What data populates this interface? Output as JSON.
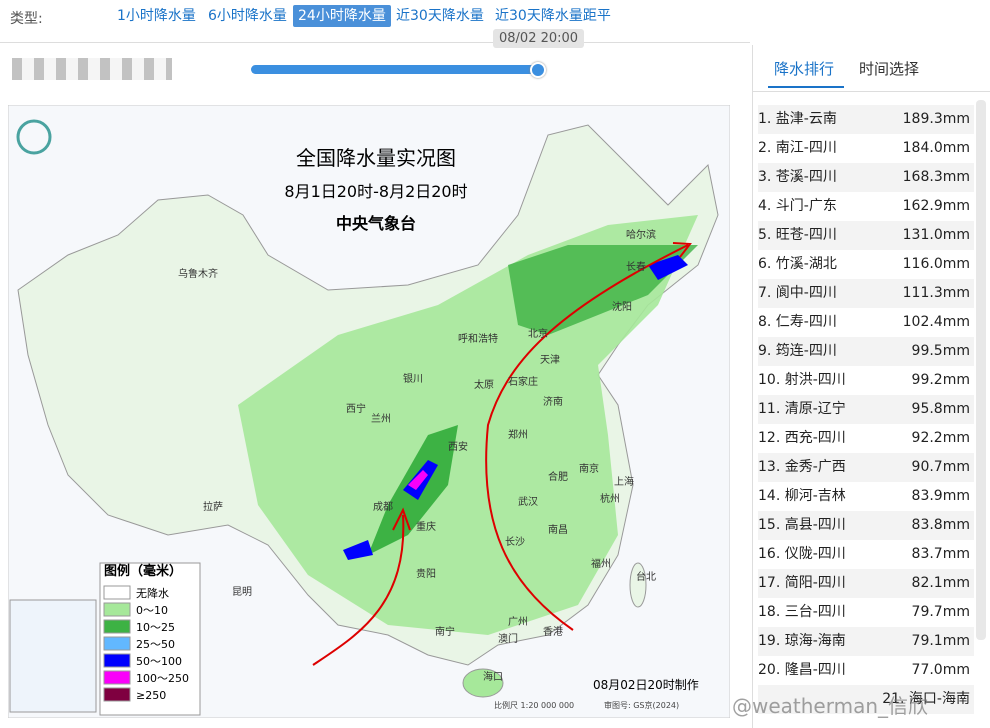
{
  "toolbar": {
    "label": "类型:",
    "tabs": [
      "1小时降水量",
      "6小时降水量",
      "24小时降水量",
      "近30天降水量",
      "近30天降水量距平"
    ],
    "active_tab": 2
  },
  "slider": {
    "time": "08/02 20:00"
  },
  "side_panel": {
    "tabs": [
      "降水排行",
      "时间选择"
    ],
    "active_tab": 0,
    "rows": [
      [
        "1. 盐津-云南",
        "189.3mm"
      ],
      [
        "2. 南江-四川",
        "184.0mm"
      ],
      [
        "3. 苍溪-四川",
        "168.3mm"
      ],
      [
        "4. 斗门-广东",
        "162.9mm"
      ],
      [
        "5. 旺苍-四川",
        "131.0mm"
      ],
      [
        "6. 竹溪-湖北",
        "116.0mm"
      ],
      [
        "7. 阆中-四川",
        "111.3mm"
      ],
      [
        "8. 仁寿-四川",
        "102.4mm"
      ],
      [
        "9. 筠连-四川",
        "99.5mm"
      ],
      [
        "10. 射洪-四川",
        "99.2mm"
      ],
      [
        "11. 清原-辽宁",
        "95.8mm"
      ],
      [
        "12. 西充-四川",
        "92.2mm"
      ],
      [
        "13. 金秀-广西",
        "90.7mm"
      ],
      [
        "14. 柳河-吉林",
        "83.9mm"
      ],
      [
        "15. 高县-四川",
        "83.8mm"
      ],
      [
        "16. 仪陇-四川",
        "83.7mm"
      ],
      [
        "17. 简阳-四川",
        "82.1mm"
      ],
      [
        "18. 三台-四川",
        "79.7mm"
      ],
      [
        "19. 琼海-海南",
        "79.1mm"
      ],
      [
        "20. 隆昌-四川",
        "77.0mm"
      ],
      [
        "21. 海口-海南"
      ]
    ]
  },
  "map": {
    "title": "全国降水量实况图",
    "period": "8月1日20时-8月2日20时",
    "issuer": "中央气象台",
    "cities": [
      "乌鲁木齐",
      "拉萨",
      "西宁",
      "兰州",
      "银川",
      "呼和浩特",
      "北京",
      "天津",
      "石家庄",
      "太原",
      "济南",
      "郑州",
      "西安",
      "成都",
      "重庆",
      "贵阳",
      "昆明",
      "南宁",
      "广州",
      "香港",
      "澳门",
      "海口",
      "长沙",
      "武汉",
      "合肥",
      "南京",
      "上海",
      "杭州",
      "南昌",
      "福州",
      "台北",
      "哈尔滨",
      "长春",
      "沈阳"
    ],
    "legend": {
      "title": "图例（毫米）",
      "items": [
        {
          "label": "无降水",
          "color": "#ffffff"
        },
        {
          "label": "0～10",
          "color": "#a6e89a"
        },
        {
          "label": "10～25",
          "color": "#3db244"
        },
        {
          "label": "25～50",
          "color": "#62b8ff"
        },
        {
          "label": "50～100",
          "color": "#0000fe"
        },
        {
          "label": "100～250",
          "color": "#fa00fa"
        },
        {
          "label": "≥250",
          "color": "#7f0040"
        }
      ]
    },
    "made": "08月02日20时制作",
    "scale": "比例尺 1:20 000 000",
    "approval": "审图号: GS京(2024)"
  },
  "watermark": "@weatherman_信欣"
}
